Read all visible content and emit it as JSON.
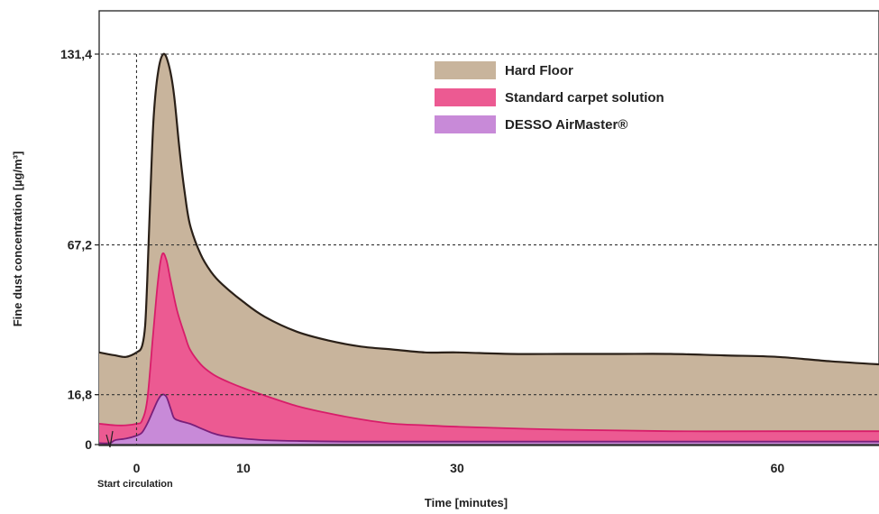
{
  "chart_data": {
    "type": "area",
    "xlabel": "Time [minutes]",
    "ylabel": "Fine dust concentration [µg/m³]",
    "x_ticks": [
      0,
      10,
      30,
      60
    ],
    "x_tick_labels": [
      "0",
      "10",
      "30",
      "60"
    ],
    "y_ticks": [
      0,
      16.8,
      67.2,
      131.4
    ],
    "y_tick_labels": [
      "0",
      "16,8",
      "67,2",
      "131,4"
    ],
    "xlim": [
      -3.5,
      69.5
    ],
    "ylim": [
      0,
      150
    ],
    "grid": "dashed reference lines at y tick values and x = 0",
    "legend_position": "top-right",
    "annotations": [
      {
        "text": "Start circulation",
        "x": 0
      }
    ],
    "series": [
      {
        "name": "Hard Floor",
        "color": "#c8b49c",
        "line_color": "#2a2018",
        "points": [
          [
            -3.5,
            31
          ],
          [
            -2,
            30
          ],
          [
            -1,
            29.5
          ],
          [
            0,
            31
          ],
          [
            0.5,
            33
          ],
          [
            0.8,
            40
          ],
          [
            1.0,
            55
          ],
          [
            1.3,
            85
          ],
          [
            1.6,
            110
          ],
          [
            2,
            125
          ],
          [
            2.5,
            131.4
          ],
          [
            3,
            128
          ],
          [
            3.5,
            118
          ],
          [
            4,
            100
          ],
          [
            4.5,
            85
          ],
          [
            5,
            74
          ],
          [
            6,
            64
          ],
          [
            7,
            58
          ],
          [
            8,
            54
          ],
          [
            10,
            48
          ],
          [
            12,
            43
          ],
          [
            15,
            38
          ],
          [
            18,
            35
          ],
          [
            21,
            33
          ],
          [
            24,
            32
          ],
          [
            27,
            31
          ],
          [
            30,
            31
          ],
          [
            35,
            30.5
          ],
          [
            40,
            30.5
          ],
          [
            45,
            30.5
          ],
          [
            50,
            30.5
          ],
          [
            55,
            30
          ],
          [
            60,
            29.5
          ],
          [
            65,
            28
          ],
          [
            69.5,
            27
          ]
        ]
      },
      {
        "name": "Standard carpet solution",
        "color": "#ec5a92",
        "line_color": "#d81d6a",
        "points": [
          [
            -3.5,
            7
          ],
          [
            -2,
            6.5
          ],
          [
            -1,
            6.5
          ],
          [
            0,
            7
          ],
          [
            0.5,
            8
          ],
          [
            1,
            15
          ],
          [
            1.5,
            35
          ],
          [
            2,
            55
          ],
          [
            2.4,
            64
          ],
          [
            2.8,
            62
          ],
          [
            3.2,
            55
          ],
          [
            3.8,
            45
          ],
          [
            4.5,
            37
          ],
          [
            5,
            32
          ],
          [
            6,
            27
          ],
          [
            7,
            24
          ],
          [
            8,
            22
          ],
          [
            10,
            19
          ],
          [
            12,
            16.5
          ],
          [
            15,
            13
          ],
          [
            18,
            10.5
          ],
          [
            21,
            8.5
          ],
          [
            24,
            7
          ],
          [
            27,
            6.5
          ],
          [
            30,
            6
          ],
          [
            40,
            5
          ],
          [
            50,
            4.5
          ],
          [
            60,
            4.5
          ],
          [
            69.5,
            4.5
          ]
        ]
      },
      {
        "name": "DESSO AirMaster®",
        "color": "#c88ad8",
        "line_color": "#7a1f7a",
        "points": [
          [
            -3.5,
            0.5
          ],
          [
            -2.5,
            0.5
          ],
          [
            -2,
            1.5
          ],
          [
            -1,
            2
          ],
          [
            0,
            3
          ],
          [
            0.5,
            4
          ],
          [
            1,
            7
          ],
          [
            1.5,
            11
          ],
          [
            2,
            15
          ],
          [
            2.4,
            16.8
          ],
          [
            2.8,
            16
          ],
          [
            3.2,
            12
          ],
          [
            3.5,
            9
          ],
          [
            4,
            8
          ],
          [
            5,
            7
          ],
          [
            6,
            5.5
          ],
          [
            7,
            4
          ],
          [
            8,
            3
          ],
          [
            10,
            2
          ],
          [
            12,
            1.5
          ],
          [
            15,
            1.2
          ],
          [
            20,
            1
          ],
          [
            30,
            1
          ],
          [
            45,
            1
          ],
          [
            60,
            1
          ],
          [
            69.5,
            1
          ]
        ]
      }
    ]
  }
}
